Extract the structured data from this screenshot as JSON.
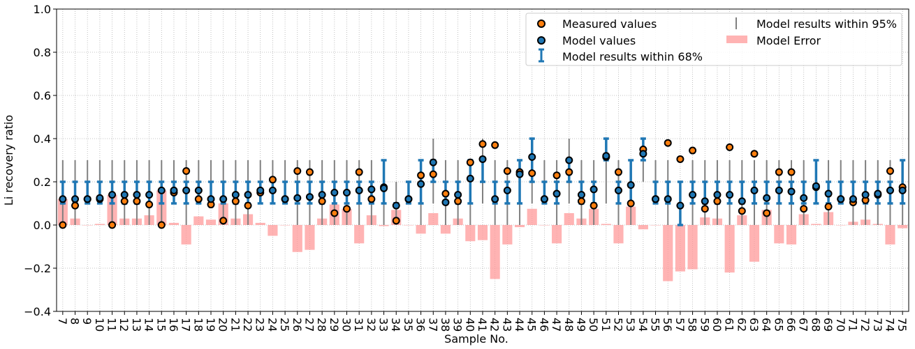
{
  "chart_data": {
    "type": "scatter",
    "xlabel": "Sample No.",
    "ylabel": "Li recovery ratio",
    "ylim": [
      -0.4,
      1.0
    ],
    "yticks": [
      -0.4,
      -0.2,
      0.0,
      0.2,
      0.4,
      0.6,
      0.8,
      1.0
    ],
    "ytick_labels": [
      "−0.4",
      "−0.2",
      "0.0",
      "0.2",
      "0.4",
      "0.6",
      "0.8",
      "1.0"
    ],
    "grid": true,
    "legend_position": "top-right",
    "legend": {
      "measured": "Measured values",
      "model": "Model values",
      "ci68": "Model results within 68%",
      "ci95": "Model results within 95%",
      "error": "Model Error"
    },
    "colors": {
      "measured": "#ff7f0e",
      "model": "#1f77b4",
      "ci68": "#1f77b4",
      "ci95": "#808080",
      "error": "#ff9999"
    },
    "samples": [
      "7",
      "8",
      "9",
      "10",
      "11",
      "12",
      "13",
      "14",
      "15",
      "16",
      "17",
      "18",
      "19",
      "20",
      "21",
      "22",
      "23",
      "24",
      "25",
      "26",
      "27",
      "28",
      "29",
      "30",
      "31",
      "32",
      "33",
      "34",
      "35",
      "36",
      "37",
      "38",
      "39",
      "40",
      "41",
      "42",
      "43",
      "44",
      "45",
      "46",
      "47",
      "48",
      "49",
      "50",
      "51",
      "52",
      "53",
      "54",
      "55",
      "56",
      "57",
      "58",
      "59",
      "60",
      "61",
      "62",
      "63",
      "64",
      "65",
      "66",
      "67",
      "68",
      "69",
      "70",
      "71",
      "72",
      "73",
      "74",
      "75"
    ],
    "series": [
      {
        "name": "Measured values",
        "values": [
          0.0,
          0.09,
          0.12,
          0.12,
          0.0,
          0.11,
          0.11,
          0.095,
          0.0,
          0.15,
          0.25,
          0.12,
          0.095,
          0.02,
          0.11,
          0.09,
          0.15,
          0.21,
          0.12,
          0.25,
          0.245,
          0.11,
          0.055,
          0.075,
          0.245,
          0.12,
          0.175,
          0.02,
          0.12,
          0.23,
          0.235,
          0.145,
          0.11,
          0.29,
          0.375,
          0.37,
          0.25,
          0.245,
          0.24,
          0.12,
          0.23,
          0.245,
          0.11,
          0.09,
          0.315,
          0.245,
          0.1,
          0.35,
          0.12,
          0.38,
          0.305,
          0.345,
          0.075,
          0.11,
          0.36,
          0.065,
          0.33,
          0.055,
          0.245,
          0.245,
          0.075,
          0.175,
          0.085,
          0.12,
          0.105,
          0.115,
          0.14,
          0.25,
          0.175
        ]
      },
      {
        "name": "Model values",
        "values": [
          0.12,
          0.12,
          0.12,
          0.125,
          0.14,
          0.14,
          0.14,
          0.14,
          0.16,
          0.16,
          0.16,
          0.16,
          0.12,
          0.12,
          0.14,
          0.14,
          0.16,
          0.16,
          0.12,
          0.125,
          0.13,
          0.14,
          0.15,
          0.15,
          0.16,
          0.165,
          0.17,
          0.09,
          0.12,
          0.19,
          0.29,
          0.105,
          0.14,
          0.215,
          0.305,
          0.12,
          0.16,
          0.235,
          0.315,
          0.12,
          0.145,
          0.3,
          0.14,
          0.165,
          0.32,
          0.16,
          0.185,
          0.33,
          0.12,
          0.12,
          0.09,
          0.14,
          0.11,
          0.14,
          0.14,
          0.11,
          0.16,
          0.125,
          0.16,
          0.155,
          0.125,
          0.18,
          0.145,
          0.12,
          0.12,
          0.14,
          0.145,
          0.16,
          0.16
        ]
      },
      {
        "name": "Model results within 68%",
        "low": [
          0.1,
          0.1,
          0.1,
          0.1,
          0.1,
          0.1,
          0.1,
          0.1,
          0.1,
          0.1,
          0.1,
          0.1,
          0.1,
          0.1,
          0.1,
          0.1,
          0.1,
          0.1,
          0.1,
          0.1,
          0.1,
          0.1,
          0.1,
          0.1,
          0.1,
          0.1,
          0.1,
          0.1,
          0.1,
          0.1,
          0.2,
          0.1,
          0.1,
          0.1,
          0.2,
          0.1,
          0.1,
          0.1,
          0.2,
          0.1,
          0.1,
          0.2,
          0.1,
          0.1,
          0.3,
          0.1,
          0.1,
          0.3,
          0.1,
          0.1,
          0.0,
          0.1,
          0.1,
          0.1,
          0.1,
          0.1,
          0.1,
          0.1,
          0.1,
          0.1,
          0.1,
          0.1,
          0.1,
          0.1,
          0.1,
          0.1,
          0.1,
          0.1,
          0.1
        ],
        "high": [
          0.2,
          0.2,
          0.2,
          0.2,
          0.2,
          0.2,
          0.2,
          0.2,
          0.2,
          0.2,
          0.2,
          0.2,
          0.2,
          0.2,
          0.2,
          0.2,
          0.2,
          0.2,
          0.2,
          0.2,
          0.2,
          0.2,
          0.2,
          0.2,
          0.2,
          0.2,
          0.3,
          0.1,
          0.2,
          0.3,
          0.3,
          0.2,
          0.2,
          0.3,
          0.3,
          0.2,
          0.2,
          0.3,
          0.4,
          0.2,
          0.2,
          0.3,
          0.2,
          0.2,
          0.4,
          0.2,
          0.3,
          0.4,
          0.2,
          0.2,
          0.2,
          0.2,
          0.2,
          0.2,
          0.2,
          0.2,
          0.2,
          0.2,
          0.2,
          0.2,
          0.2,
          0.3,
          0.2,
          0.2,
          0.2,
          0.2,
          0.2,
          0.2,
          0.3
        ]
      },
      {
        "name": "Model results within 95%",
        "low": [
          0.0,
          0.0,
          0.1,
          0.1,
          0.0,
          0.0,
          0.0,
          0.0,
          0.0,
          0.1,
          0.0,
          0.1,
          0.1,
          0.0,
          0.0,
          0.0,
          0.1,
          0.1,
          0.1,
          0.0,
          0.0,
          0.0,
          0.0,
          0.0,
          0.0,
          0.0,
          0.0,
          0.0,
          0.1,
          0.0,
          0.1,
          0.0,
          0.0,
          0.0,
          0.1,
          0.0,
          0.0,
          0.0,
          0.1,
          0.1,
          0.0,
          0.1,
          0.0,
          0.0,
          0.1,
          0.0,
          0.0,
          0.2,
          0.1,
          0.0,
          0.0,
          0.0,
          0.0,
          0.0,
          0.0,
          0.0,
          0.0,
          0.0,
          0.0,
          0.0,
          0.0,
          0.1,
          0.0,
          0.1,
          0.0,
          0.0,
          0.0,
          0.0,
          0.0
        ],
        "high": [
          0.3,
          0.3,
          0.3,
          0.3,
          0.3,
          0.3,
          0.3,
          0.3,
          0.3,
          0.3,
          0.3,
          0.3,
          0.3,
          0.3,
          0.3,
          0.3,
          0.3,
          0.3,
          0.3,
          0.3,
          0.3,
          0.3,
          0.3,
          0.3,
          0.3,
          0.3,
          0.3,
          0.2,
          0.2,
          0.3,
          0.4,
          0.3,
          0.3,
          0.3,
          0.4,
          0.3,
          0.3,
          0.3,
          0.4,
          0.3,
          0.3,
          0.4,
          0.3,
          0.3,
          0.4,
          0.3,
          0.3,
          0.4,
          0.3,
          0.3,
          0.2,
          0.3,
          0.3,
          0.3,
          0.3,
          0.3,
          0.3,
          0.3,
          0.3,
          0.3,
          0.3,
          0.3,
          0.3,
          0.3,
          0.3,
          0.3,
          0.3,
          0.3,
          0.3
        ]
      },
      {
        "name": "Model Error",
        "values": [
          0.12,
          0.03,
          0.0,
          0.005,
          0.14,
          0.03,
          0.03,
          0.045,
          0.16,
          0.01,
          -0.09,
          0.04,
          0.025,
          0.1,
          0.03,
          0.05,
          0.01,
          -0.05,
          0.0,
          -0.125,
          -0.115,
          0.03,
          0.095,
          0.075,
          -0.085,
          0.045,
          -0.005,
          0.07,
          0.0,
          -0.04,
          0.055,
          -0.04,
          0.03,
          -0.075,
          -0.07,
          -0.25,
          -0.09,
          -0.01,
          0.075,
          0.0,
          -0.085,
          0.055,
          0.03,
          0.075,
          0.005,
          -0.085,
          0.085,
          -0.02,
          0.0,
          -0.26,
          -0.215,
          -0.205,
          0.035,
          0.03,
          -0.22,
          0.045,
          -0.17,
          0.07,
          -0.085,
          -0.09,
          0.05,
          0.005,
          0.06,
          0.0,
          0.015,
          0.025,
          0.005,
          -0.09,
          -0.015
        ]
      }
    ]
  }
}
